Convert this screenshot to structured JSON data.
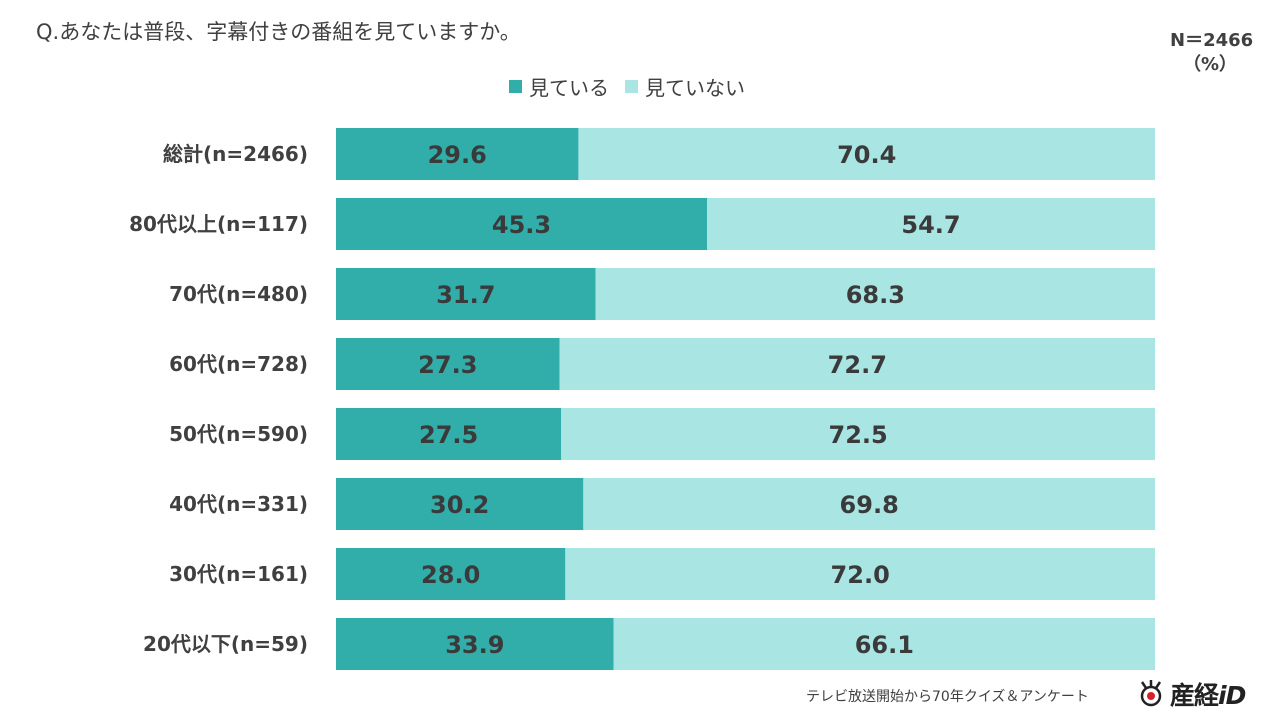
{
  "question": "Q.あなたは普段、字幕付きの番組を見ていますか。",
  "n_total": "N＝2466",
  "unit": "（%）",
  "footer": "テレビ放送開始から70年クイズ＆アンケート",
  "logo": {
    "text": "産経",
    "suffix": "iD"
  },
  "colors": {
    "watching": "#31ADAA",
    "not_watching": "#A8E5E3"
  },
  "chart_data": {
    "type": "bar",
    "orientation": "horizontal",
    "stacked": true,
    "categories": [
      "総計(n=2466)",
      "80代以上(n=117)",
      "70代(n=480)",
      "60代(n=728)",
      "50代(n=590)",
      "40代(n=331)",
      "30代(n=161)",
      "20代以下(n=59)"
    ],
    "series": [
      {
        "name": "見ている",
        "values": [
          29.6,
          45.3,
          31.7,
          27.3,
          27.5,
          30.2,
          28.0,
          33.9
        ]
      },
      {
        "name": "見ていない",
        "values": [
          70.4,
          54.7,
          68.3,
          72.7,
          72.5,
          69.8,
          72.0,
          66.1
        ]
      }
    ],
    "xlim": [
      0,
      100
    ],
    "legend": "top-center"
  }
}
